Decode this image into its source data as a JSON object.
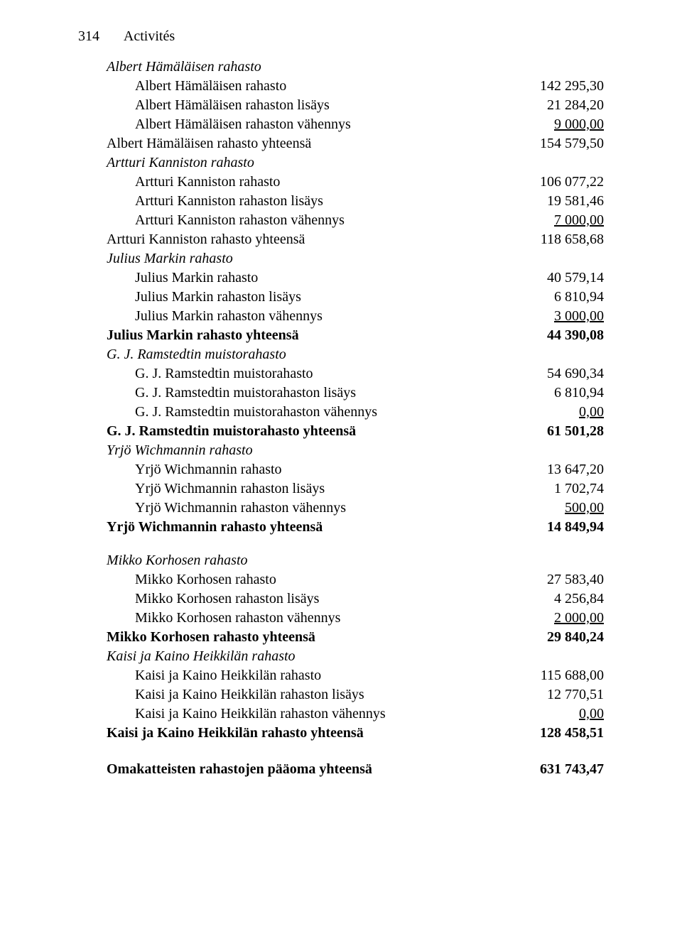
{
  "header": {
    "page_number": "314",
    "title": "Activités"
  },
  "colors": {
    "text": "#000000",
    "background": "#ffffff"
  },
  "typography": {
    "font_family": "Times New Roman",
    "base_fontsize_pt": 15,
    "line_height": 1.35
  },
  "sections": [
    {
      "title": "Albert Hämäläisen rahasto",
      "rows": [
        {
          "label": "Albert Hämäläisen rahasto",
          "value": "142 295,30"
        },
        {
          "label": "Albert Hämäläisen rahaston lisäys",
          "value": "21 284,20"
        },
        {
          "label": "Albert Hämäläisen rahaston vähennys",
          "value": "9 000,00",
          "underline": true
        }
      ],
      "total": {
        "label": "Albert Hämäläisen rahasto yhteensä",
        "value": "154 579,50"
      }
    },
    {
      "title": "Artturi Kanniston rahasto",
      "rows": [
        {
          "label": "Artturi Kanniston rahasto",
          "value": "106 077,22"
        },
        {
          "label": "Artturi Kanniston rahaston lisäys",
          "value": "19 581,46"
        },
        {
          "label": "Artturi Kanniston rahaston vähennys",
          "value": "7 000,00",
          "underline": true
        }
      ],
      "total": {
        "label": "Artturi Kanniston rahasto yhteensä",
        "value": "118 658,68"
      }
    },
    {
      "title": "Julius Markin rahasto",
      "rows": [
        {
          "label": "Julius Markin rahasto",
          "value": "40 579,14"
        },
        {
          "label": "Julius Markin rahaston lisäys",
          "value": "6 810,94"
        },
        {
          "label": "Julius Markin rahaston vähennys",
          "value": "3 000,00",
          "underline": true
        }
      ],
      "total": {
        "label": "Julius Markin rahasto yhteensä",
        "value": "44 390,08",
        "bold": true
      }
    },
    {
      "title": "G. J. Ramstedtin muistorahasto",
      "rows": [
        {
          "label": "G. J. Ramstedtin muistorahasto",
          "value": "54 690,34"
        },
        {
          "label": "G. J. Ramstedtin muistorahaston lisäys",
          "value": "6 810,94"
        },
        {
          "label": "G. J. Ramstedtin muistorahaston vähennys",
          "value": "0,00",
          "underline": true
        }
      ],
      "total": {
        "label": "G. J. Ramstedtin muistorahasto yhteensä",
        "value": "61 501,28",
        "bold": true
      }
    },
    {
      "title": "Yrjö Wichmannin rahasto",
      "rows": [
        {
          "label": "Yrjö Wichmannin rahasto",
          "value": "13 647,20"
        },
        {
          "label": "Yrjö Wichmannin rahaston lisäys",
          "value": "1 702,74"
        },
        {
          "label": "Yrjö Wichmannin rahaston vähennys",
          "value": "500,00",
          "underline": true
        }
      ],
      "total": {
        "label": "Yrjö Wichmannin rahasto yhteensä",
        "value": "14 849,94",
        "bold": true
      }
    },
    {
      "title": "Mikko Korhosen rahasto",
      "spacer_before": true,
      "rows": [
        {
          "label": "Mikko Korhosen rahasto",
          "value": "27 583,40"
        },
        {
          "label": "Mikko Korhosen rahaston lisäys",
          "value": "4 256,84"
        },
        {
          "label": "Mikko Korhosen rahaston vähennys",
          "value": "2 000,00",
          "underline": true
        }
      ],
      "total": {
        "label": "Mikko Korhosen rahasto yhteensä",
        "value": "29 840,24",
        "bold": true
      }
    },
    {
      "title": "Kaisi ja Kaino Heikkilän rahasto",
      "rows": [
        {
          "label": "Kaisi ja Kaino Heikkilän rahasto",
          "value": "115 688,00"
        },
        {
          "label": "Kaisi ja Kaino Heikkilän rahaston lisäys",
          "value": "12 770,51"
        },
        {
          "label": "Kaisi ja Kaino Heikkilän rahaston vähennys",
          "value": "0,00",
          "underline": true
        }
      ],
      "total": {
        "label": "Kaisi ja Kaino Heikkilän rahasto yhteensä",
        "value": "128 458,51",
        "bold": true
      }
    }
  ],
  "grand_total": {
    "label": "Omakatteisten rahastojen pääoma yhteensä",
    "value": "631 743,47",
    "bold": true
  }
}
